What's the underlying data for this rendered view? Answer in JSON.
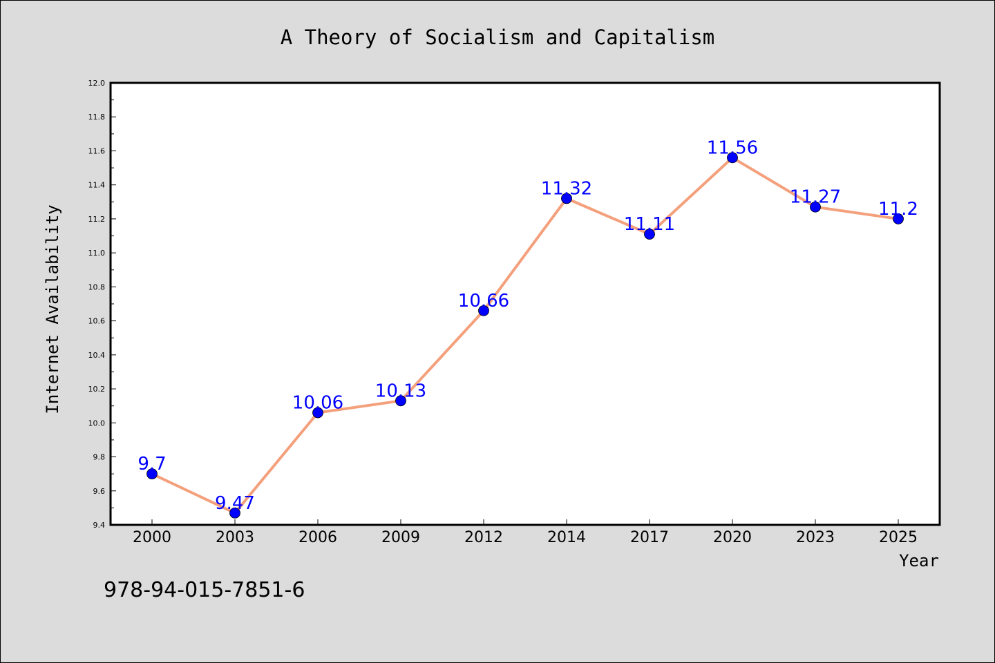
{
  "chart_data": {
    "type": "line",
    "title": "A Theory of Socialism and Capitalism",
    "xlabel": "Year",
    "ylabel": "Internet Availability",
    "categories": [
      "2000",
      "2003",
      "2006",
      "2009",
      "2012",
      "2014",
      "2017",
      "2020",
      "2023",
      "2025"
    ],
    "series": [
      {
        "values": [
          9.7,
          9.47,
          10.06,
          10.13,
          10.66,
          11.32,
          11.11,
          11.56,
          11.27,
          11.2
        ]
      }
    ],
    "data_labels": [
      "9.7",
      "9.47",
      "10.06",
      "10.13",
      "10.66",
      "11.32",
      "11.11",
      "11.56",
      "11.27",
      "11.2"
    ],
    "ylim": [
      9.4,
      12.0
    ],
    "yticks": [
      "9.4",
      "9.6",
      "9.8",
      "10.0",
      "10.2",
      "10.4",
      "10.6",
      "10.8",
      "11.0",
      "11.2",
      "11.4",
      "11.6",
      "11.8",
      "12.0"
    ],
    "grid": false,
    "legend": "none",
    "colors": {
      "line": "#f4a07c",
      "marker": "#0000ff",
      "data_label": "#0000ff",
      "background": "#dcdcdc",
      "plot_area": "#ffffff"
    }
  },
  "footer": {
    "isbn": "978-94-015-7851-6"
  }
}
